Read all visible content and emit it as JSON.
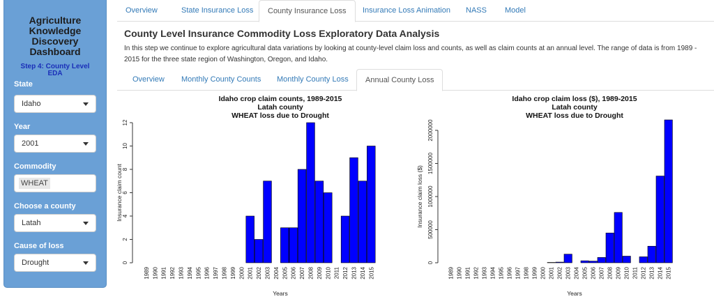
{
  "sidebar": {
    "title": [
      "Agriculture",
      "Knowledge",
      "Discovery",
      "Dashboard"
    ],
    "step": [
      "Step 4: County Level",
      "EDA"
    ],
    "state_label": "State",
    "state_value": "Idaho",
    "year_label": "Year",
    "year_value": "2001",
    "commodity_label": "Commodity",
    "commodity_value": "WHEAT",
    "county_label": "Choose a county",
    "county_value": "Latah",
    "cause_label": "Cause of loss",
    "cause_value": "Drought"
  },
  "topnav": {
    "tabs": [
      "Overview",
      "State Insurance Loss",
      "County Insurance Loss",
      "Insurance Loss Animation",
      "NASS",
      "Model"
    ],
    "active": 2
  },
  "main": {
    "heading": "County Level Insurance Commodity Loss Exploratory Data Analysis",
    "description": "In this step we continue to explore agricultural data variations by looking at county-level claim loss and counts, as well as claim counts at an annual level. The range of data is from 1989 - 2015 for the three state region of Washington, Oregon, and Idaho."
  },
  "subnav": {
    "tabs": [
      "Overview",
      "Monthly County Counts",
      "Monthly County Loss",
      "Annual County Loss"
    ],
    "active": 3
  },
  "colors": {
    "bar": "#0000ff",
    "link": "#337ab7",
    "sidebar": "#6aa0d6"
  },
  "chart_data": [
    {
      "type": "bar",
      "title": [
        "Idaho crop claim counts, 1989-2015",
        "Latah county",
        "WHEAT loss due to Drought"
      ],
      "xlabel": "Years",
      "ylabel": "Insurance claim count",
      "categories": [
        "1989",
        "1990",
        "1991",
        "1992",
        "1993",
        "1994",
        "1995",
        "1996",
        "1997",
        "1998",
        "1999",
        "2000",
        "2001",
        "2002",
        "2003",
        "2004",
        "2005",
        "2006",
        "2007",
        "2008",
        "2009",
        "2010",
        "2011",
        "2012",
        "2013",
        "2014",
        "2015"
      ],
      "values": [
        0,
        0,
        0,
        0,
        0,
        0,
        0,
        0,
        0,
        0,
        0,
        0,
        4,
        2,
        7,
        0,
        3,
        3,
        8,
        12,
        7,
        6,
        0,
        4,
        9,
        7,
        10
      ],
      "yticks": [
        "0",
        "2",
        "4",
        "6",
        "8",
        "10",
        "12"
      ],
      "ylim": [
        0,
        12
      ]
    },
    {
      "type": "bar",
      "title": [
        "Idaho crop claim loss ($), 1989-2015",
        "Latah county",
        "WHEAT loss due to Drought"
      ],
      "xlabel": "Years",
      "ylabel": "Insurance claim loss ($)",
      "categories": [
        "1989",
        "1990",
        "1991",
        "1992",
        "1993",
        "1994",
        "1995",
        "1996",
        "1997",
        "1998",
        "1999",
        "2000",
        "2001",
        "2002",
        "2003",
        "2004",
        "2005",
        "2006",
        "2007",
        "2008",
        "2009",
        "2010",
        "2011",
        "2012",
        "2013",
        "2014",
        "2015"
      ],
      "values": [
        0,
        0,
        0,
        0,
        0,
        0,
        0,
        0,
        0,
        0,
        0,
        0,
        5000,
        10000,
        130000,
        0,
        30000,
        25000,
        80000,
        450000,
        760000,
        100000,
        0,
        90000,
        250000,
        1310000,
        2240000
      ],
      "yticks": [
        "0",
        "500000",
        "1000000",
        "1500000",
        "2000000"
      ],
      "ylim": [
        0,
        2000000
      ]
    }
  ]
}
